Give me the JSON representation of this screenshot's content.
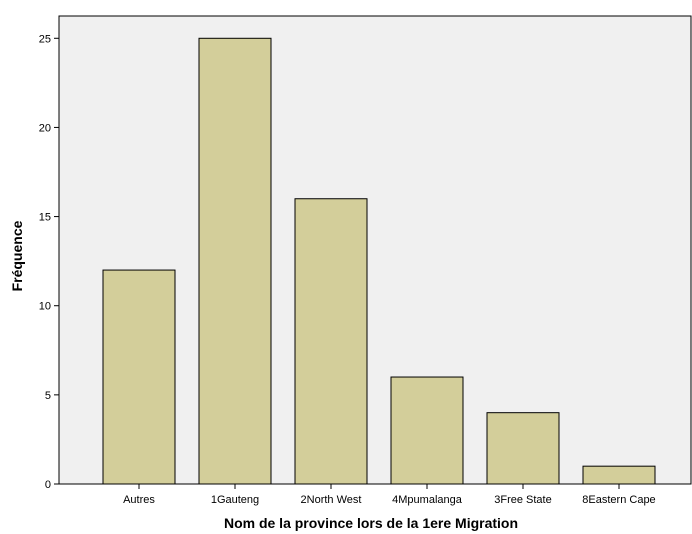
{
  "chart_data": {
    "type": "bar",
    "categories": [
      "Autres",
      "1Gauteng",
      "2North West",
      "4Mpumalanga",
      "3Free State",
      "8Eastern Cape"
    ],
    "values": [
      12,
      25,
      16,
      6,
      4,
      1
    ],
    "xlabel": "Nom de la province lors de la 1ere Migration",
    "ylabel": "Fréquence",
    "ylim": [
      0,
      26.25
    ],
    "yticks": [
      0,
      5,
      10,
      15,
      20,
      25
    ],
    "grid": false,
    "colors": {
      "bar_fill": "#d3ce9a",
      "bar_stroke": "#000000",
      "plot_background": "#f0f0f0",
      "page_background": "#ffffff"
    }
  }
}
